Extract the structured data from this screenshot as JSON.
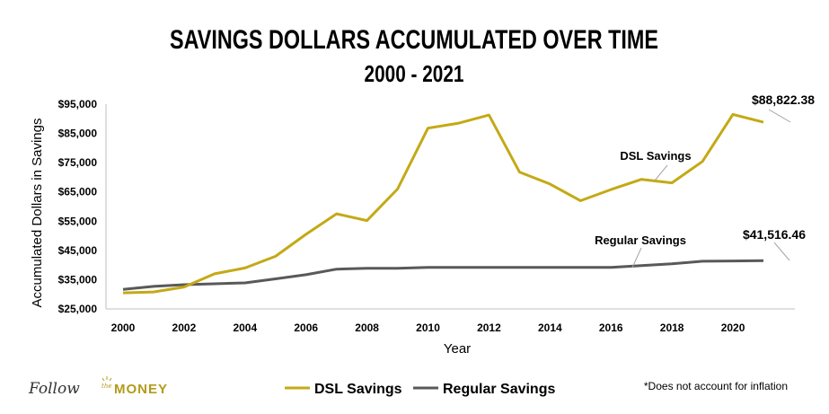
{
  "chart_data": {
    "type": "line",
    "title": "SAVINGS DOLLARS ACCUMULATED OVER TIME",
    "subtitle": "2000 - 2021",
    "xlabel": "Year",
    "ylabel": "Accumulated Dollars in Savings",
    "xlim": [
      2000,
      2021
    ],
    "ylim": [
      25000,
      95000
    ],
    "x_ticks": [
      "2000",
      "2002",
      "2004",
      "2006",
      "2008",
      "2010",
      "2012",
      "2014",
      "2016",
      "2018",
      "2020"
    ],
    "y_ticks": [
      "$25,000",
      "$35,000",
      "$45,000",
      "$55,000",
      "$65,000",
      "$75,000",
      "$85,000",
      "$95,000"
    ],
    "grid": false,
    "legend_position": "bottom",
    "x": [
      2000,
      2001,
      2002,
      2003,
      2004,
      2005,
      2006,
      2007,
      2008,
      2009,
      2010,
      2011,
      2012,
      2013,
      2014,
      2015,
      2016,
      2017,
      2018,
      2019,
      2020,
      2021
    ],
    "series": [
      {
        "name": "DSL Savings",
        "color": "#c4a916",
        "values": [
          30500,
          30800,
          32500,
          37000,
          39000,
          43000,
          50500,
          57500,
          55200,
          66000,
          86800,
          88500,
          91300,
          71800,
          67700,
          62000,
          65800,
          69300,
          68100,
          75400,
          91500,
          88822.38
        ]
      },
      {
        "name": "Regular Savings",
        "color": "#595959",
        "values": [
          31700,
          32700,
          33300,
          33600,
          33900,
          35300,
          36700,
          38600,
          38900,
          38900,
          39200,
          39200,
          39200,
          39200,
          39200,
          39200,
          39200,
          39800,
          40400,
          41300,
          41400,
          41516.46
        ]
      }
    ],
    "annotations": [
      {
        "text": "$88,822.38",
        "series": "DSL Savings"
      },
      {
        "text": "DSL Savings",
        "series": "DSL Savings"
      },
      {
        "text": "Regular Savings",
        "series": "Regular Savings"
      },
      {
        "text": "$41,516.46",
        "series": "Regular Savings"
      }
    ]
  },
  "footnote": "*Does not account for inflation",
  "logo": {
    "follow": "Follow",
    "the": "the",
    "money": "MONEY"
  }
}
